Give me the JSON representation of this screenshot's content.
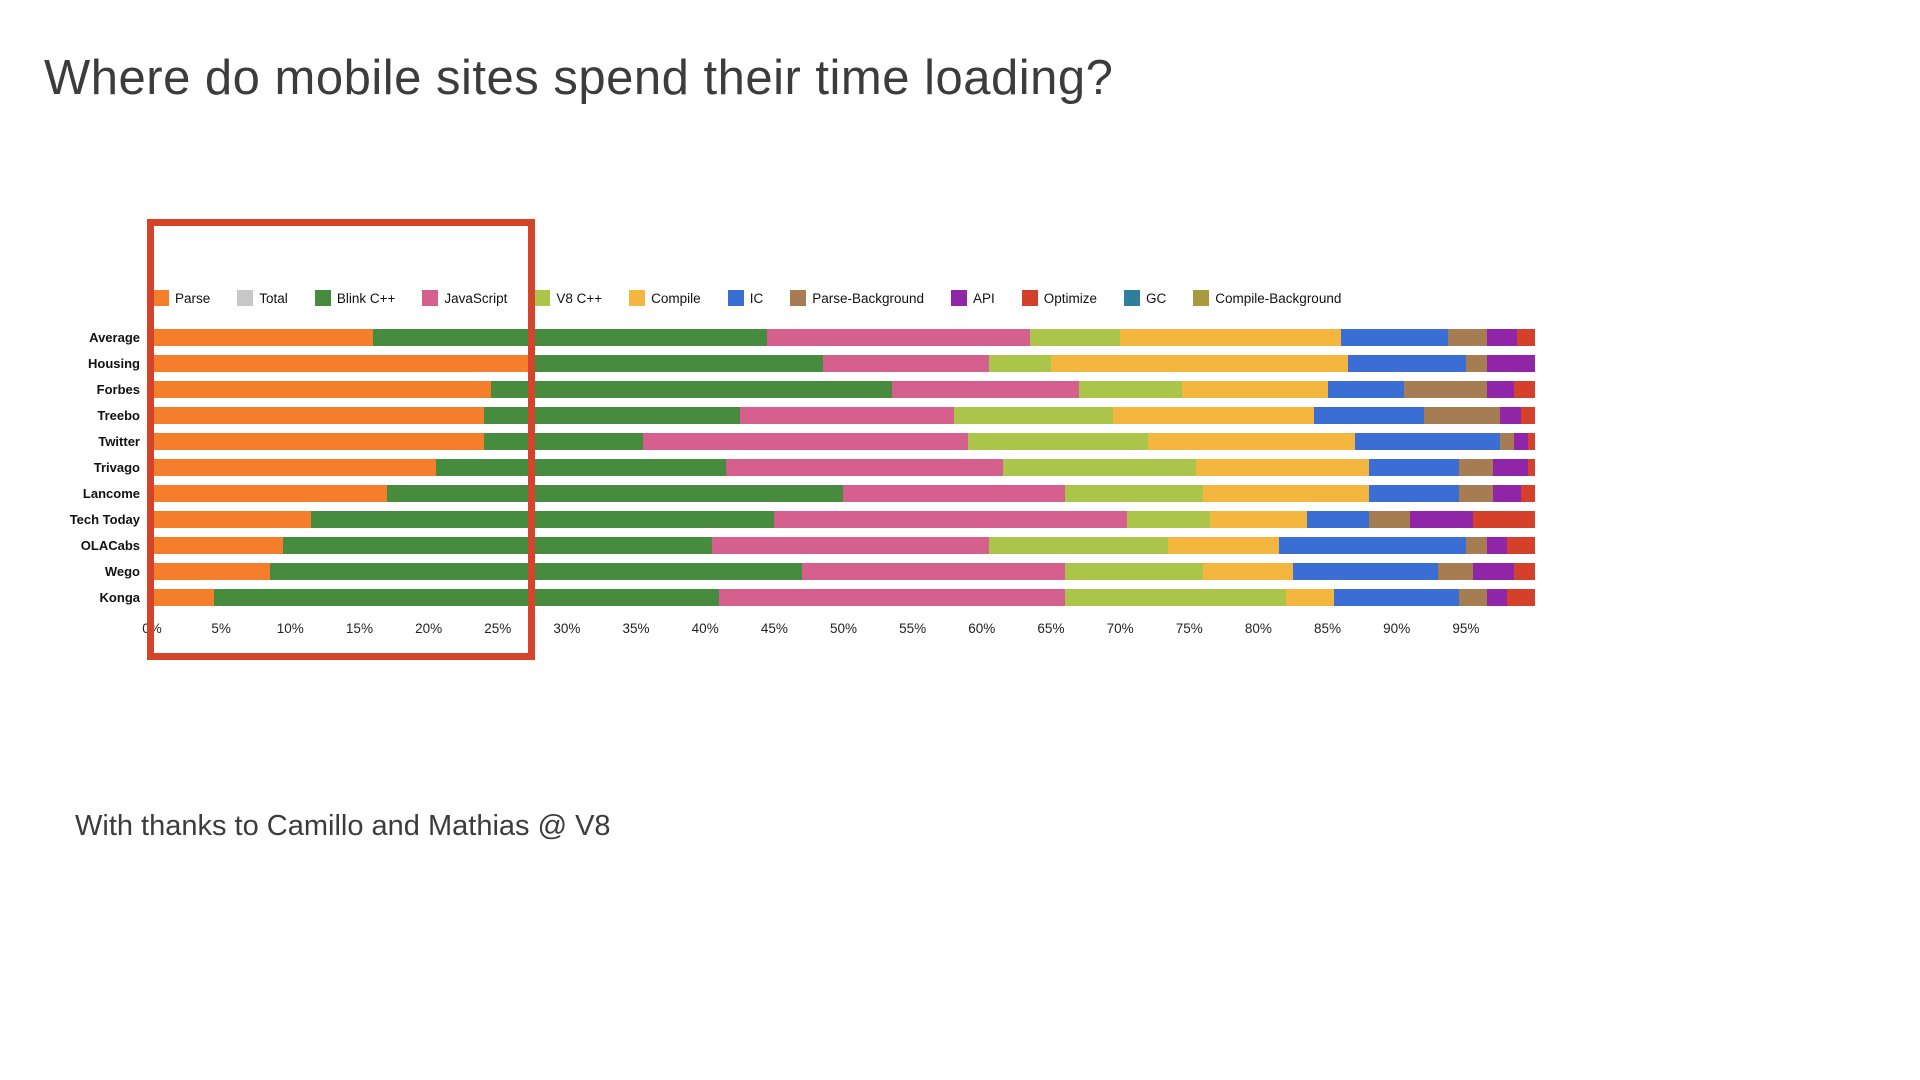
{
  "page": {
    "title": "Where do mobile sites spend their time loading?",
    "footer": "With thanks to Camillo and Mathias @ V8"
  },
  "chart_data": {
    "type": "bar",
    "orientation": "horizontal",
    "stacked": true,
    "unit": "%",
    "xlim": [
      0,
      100
    ],
    "grid": false,
    "legend_position": "top",
    "x_ticks": [
      "0%",
      "5%",
      "10%",
      "15%",
      "20%",
      "25%",
      "30%",
      "35%",
      "40%",
      "45%",
      "50%",
      "55%",
      "60%",
      "65%",
      "70%",
      "75%",
      "80%",
      "85%",
      "90%",
      "95%"
    ],
    "categories": [
      "Average",
      "Housing",
      "Forbes",
      "Treebo",
      "Twitter",
      "Trivago",
      "Lancome",
      "Tech Today",
      "OLACabs",
      "Wego",
      "Konga"
    ],
    "series": [
      {
        "name": "Parse",
        "color": "#f57e2c",
        "values": [
          16,
          27.5,
          24.5,
          24,
          24,
          20.5,
          17,
          11.5,
          9.5,
          8.5,
          4.5
        ]
      },
      {
        "name": "Total",
        "color": "#c7c7c7",
        "values": [
          0,
          0,
          0,
          0,
          0,
          0,
          0,
          0,
          0,
          0,
          0
        ]
      },
      {
        "name": "Blink C++",
        "color": "#478b3f",
        "values": [
          28.5,
          21,
          29,
          18.5,
          11.5,
          21,
          33,
          33.5,
          31,
          38.5,
          36.5
        ]
      },
      {
        "name": "JavaScript",
        "color": "#d6608d",
        "values": [
          19,
          12,
          13.5,
          15.5,
          23.5,
          20,
          16,
          25.5,
          20,
          19,
          25
        ]
      },
      {
        "name": "V8 C++",
        "color": "#abc54a",
        "values": [
          6.5,
          4.5,
          7.5,
          11.5,
          13,
          14,
          10,
          6,
          13,
          10,
          16
        ]
      },
      {
        "name": "Compile",
        "color": "#f4b63e",
        "values": [
          16,
          21.5,
          10.5,
          14.5,
          15,
          12.5,
          12,
          7,
          8,
          6.5,
          3.5
        ]
      },
      {
        "name": "IC",
        "color": "#3a6ed5",
        "values": [
          7.7,
          8.5,
          5.5,
          8,
          10.5,
          6.5,
          6.5,
          4.5,
          13.5,
          10.5,
          9
        ]
      },
      {
        "name": "Parse-Background",
        "color": "#a67c52",
        "values": [
          2.8,
          1.5,
          6,
          5.5,
          1,
          2.5,
          2.5,
          3,
          1.5,
          2.5,
          2
        ]
      },
      {
        "name": "API",
        "color": "#9025a8",
        "values": [
          2.2,
          3.5,
          2,
          1.5,
          1,
          2.5,
          2,
          4.5,
          1.5,
          3,
          1.5
        ]
      },
      {
        "name": "Optimize",
        "color": "#d5402b",
        "values": [
          1.3,
          0,
          1.5,
          1,
          0.5,
          0.5,
          1,
          4.5,
          2,
          1.5,
          2
        ]
      },
      {
        "name": "GC",
        "color": "#2d7f9b",
        "values": [
          0,
          0,
          0,
          0,
          0,
          0,
          0,
          0,
          0,
          0,
          0
        ]
      },
      {
        "name": "Compile-Background",
        "color": "#a99a3f",
        "values": [
          0,
          0,
          0,
          0,
          0,
          0,
          0,
          0,
          0,
          0,
          0
        ]
      }
    ],
    "annotations": {
      "highlight_region": {
        "x_start_pct": 0,
        "x_end_pct": 27.5,
        "color": "#d4432a"
      }
    }
  }
}
